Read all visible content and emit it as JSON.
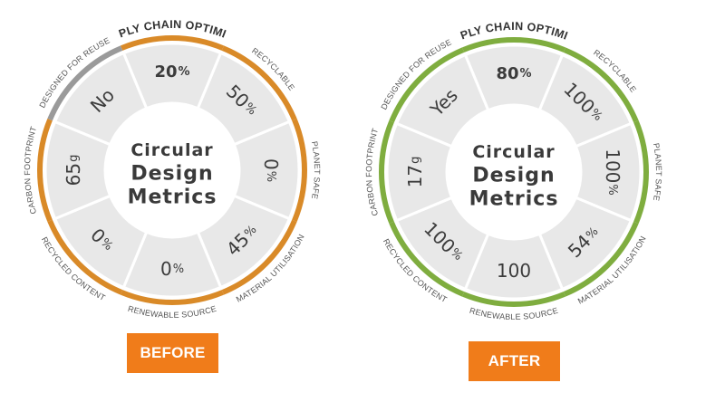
{
  "colors": {
    "before_ring": "#d98a28",
    "after_ring": "#7fad3f",
    "inactive_ring": "#9a9a9a",
    "segment_fill": "#e8e8e8",
    "segment_border": "#ffffff",
    "value_text": "#3c3c3c",
    "label_text": "#555555",
    "tag_bg": "#f07c1a"
  },
  "diagrams": [
    {
      "id": "before",
      "center_title": [
        "Circular",
        "Design",
        "Metrics"
      ],
      "top_label": "SUPPLY CHAIN OPTIMIZED",
      "tag": "BEFORE",
      "segments": [
        {
          "label": "SUPPLY CHAIN OPTIMIZED",
          "value": "20",
          "unit": "%",
          "active": true
        },
        {
          "label": "RECYCLABLE",
          "value": "50",
          "unit": "%",
          "active": true
        },
        {
          "label": "PLANET SAFE",
          "value": "0",
          "unit": "%",
          "active": true
        },
        {
          "label": "MATERIAL UTILISATION",
          "value": "45",
          "unit": "%",
          "active": true
        },
        {
          "label": "RENEWABLE SOURCE",
          "value": "0",
          "unit": "%",
          "active": true
        },
        {
          "label": "RECYCLED CONTENT",
          "value": "0",
          "unit": "%",
          "active": true
        },
        {
          "label": "CARBON FOOTPRINT",
          "value": "65",
          "unit": "g",
          "active": true
        },
        {
          "label": "DESIGNED FOR REUSE",
          "value": "No",
          "unit": "",
          "active": false
        }
      ]
    },
    {
      "id": "after",
      "center_title": [
        "Circular",
        "Design",
        "Metrics"
      ],
      "top_label": "SUPPLY CHAIN OPTIMIZED",
      "tag": "AFTER",
      "segments": [
        {
          "label": "SUPPLY CHAIN OPTIMIZED",
          "value": "80",
          "unit": "%",
          "active": true
        },
        {
          "label": "RECYCLABLE",
          "value": "100",
          "unit": "%",
          "active": true
        },
        {
          "label": "PLANET SAFE",
          "value": "100",
          "unit": "%",
          "active": true
        },
        {
          "label": "MATERIAL UTILISATION",
          "value": "54",
          "unit": "%",
          "active": true
        },
        {
          "label": "RENEWABLE SOURCE",
          "value": "100",
          "unit": "",
          "active": true
        },
        {
          "label": "RECYCLED CONTENT",
          "value": "100",
          "unit": "%",
          "active": true
        },
        {
          "label": "CARBON FOOTPRINT",
          "value": "17",
          "unit": "g",
          "active": true
        },
        {
          "label": "DESIGNED FOR REUSE",
          "value": "Yes",
          "unit": "",
          "active": true
        }
      ]
    }
  ]
}
